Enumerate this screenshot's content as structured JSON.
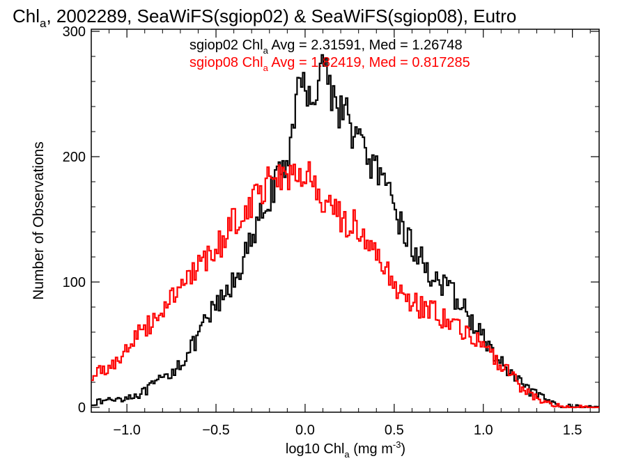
{
  "chart_data": {
    "type": "line",
    "step": true,
    "title": {
      "prefix": "Chl",
      "sub": "a",
      "suffix": ", 2002289, SeaWiFS(sgiop02) & SeaWiFS(sgiop08), Eutro"
    },
    "xlabel": {
      "prefix": "log10 Chl",
      "sub": "a",
      "suffix": " (mg m",
      "sup": "-3",
      "close": ")"
    },
    "ylabel": "Number of Observations",
    "xlim": [
      -1.2,
      1.65
    ],
    "ylim": [
      0,
      300
    ],
    "xticks": [
      -1.0,
      -0.5,
      0.0,
      0.5,
      1.0,
      1.5
    ],
    "xtick_labels": [
      "−1.0",
      "−0.5",
      "0.0",
      "0.5",
      "1.0",
      "1.5"
    ],
    "yticks": [
      0,
      100,
      200,
      300
    ],
    "ytick_labels": [
      "0",
      "100",
      "200",
      "300"
    ],
    "grid": false,
    "annotations": [
      {
        "prefix": "sgiop02 Chl",
        "sub": "a",
        "suffix": " Avg = 2.31591, Med = 1.26748",
        "color": "#000000"
      },
      {
        "prefix": "sgiop08 Chl",
        "sub": "a",
        "suffix": " Avg = 1.82419, Med = 0.817285",
        "color": "#ff0000"
      }
    ],
    "series": [
      {
        "color": "#000000",
        "points": [
          [
            -1.2,
            3
          ],
          [
            -1.1,
            6
          ],
          [
            -1.0,
            8
          ],
          [
            -0.95,
            10
          ],
          [
            -0.9,
            12
          ],
          [
            -0.85,
            18
          ],
          [
            -0.8,
            22
          ],
          [
            -0.75,
            28
          ],
          [
            -0.7,
            36
          ],
          [
            -0.65,
            44
          ],
          [
            -0.6,
            55
          ],
          [
            -0.55,
            70
          ],
          [
            -0.5,
            80
          ],
          [
            -0.45,
            88
          ],
          [
            -0.4,
            100
          ],
          [
            -0.35,
            118
          ],
          [
            -0.3,
            130
          ],
          [
            -0.25,
            150
          ],
          [
            -0.2,
            170
          ],
          [
            -0.15,
            180
          ],
          [
            -0.1,
            192
          ],
          [
            -0.07,
            232
          ],
          [
            -0.05,
            248
          ],
          [
            -0.02,
            255
          ],
          [
            0.0,
            252
          ],
          [
            0.03,
            258
          ],
          [
            0.05,
            246
          ],
          [
            0.08,
            262
          ],
          [
            0.1,
            285
          ],
          [
            0.12,
            268
          ],
          [
            0.15,
            250
          ],
          [
            0.2,
            238
          ],
          [
            0.25,
            228
          ],
          [
            0.3,
            212
          ],
          [
            0.35,
            200
          ],
          [
            0.4,
            190
          ],
          [
            0.45,
            170
          ],
          [
            0.5,
            162
          ],
          [
            0.55,
            142
          ],
          [
            0.6,
            128
          ],
          [
            0.65,
            118
          ],
          [
            0.7,
            108
          ],
          [
            0.75,
            100
          ],
          [
            0.8,
            92
          ],
          [
            0.85,
            88
          ],
          [
            0.9,
            76
          ],
          [
            0.95,
            66
          ],
          [
            1.0,
            55
          ],
          [
            1.05,
            44
          ],
          [
            1.1,
            36
          ],
          [
            1.15,
            26
          ],
          [
            1.2,
            20
          ],
          [
            1.25,
            14
          ],
          [
            1.3,
            10
          ],
          [
            1.35,
            6
          ],
          [
            1.4,
            3
          ],
          [
            1.45,
            1
          ],
          [
            1.5,
            1
          ],
          [
            1.55,
            0
          ]
        ]
      },
      {
        "color": "#ff0000",
        "points": [
          [
            -1.2,
            22
          ],
          [
            -1.15,
            30
          ],
          [
            -1.1,
            32
          ],
          [
            -1.05,
            38
          ],
          [
            -1.0,
            48
          ],
          [
            -0.95,
            55
          ],
          [
            -0.9,
            62
          ],
          [
            -0.85,
            70
          ],
          [
            -0.8,
            80
          ],
          [
            -0.75,
            90
          ],
          [
            -0.7,
            96
          ],
          [
            -0.65,
            102
          ],
          [
            -0.6,
            110
          ],
          [
            -0.55,
            116
          ],
          [
            -0.5,
            126
          ],
          [
            -0.45,
            136
          ],
          [
            -0.4,
            150
          ],
          [
            -0.35,
            156
          ],
          [
            -0.3,
            165
          ],
          [
            -0.25,
            172
          ],
          [
            -0.2,
            182
          ],
          [
            -0.15,
            188
          ],
          [
            -0.1,
            186
          ],
          [
            -0.05,
            184
          ],
          [
            0.0,
            186
          ],
          [
            0.05,
            176
          ],
          [
            0.1,
            164
          ],
          [
            0.15,
            154
          ],
          [
            0.2,
            150
          ],
          [
            0.25,
            148
          ],
          [
            0.3,
            142
          ],
          [
            0.35,
            132
          ],
          [
            0.4,
            118
          ],
          [
            0.45,
            108
          ],
          [
            0.5,
            100
          ],
          [
            0.55,
            90
          ],
          [
            0.6,
            84
          ],
          [
            0.65,
            80
          ],
          [
            0.7,
            78
          ],
          [
            0.75,
            74
          ],
          [
            0.8,
            68
          ],
          [
            0.85,
            64
          ],
          [
            0.9,
            60
          ],
          [
            0.95,
            54
          ],
          [
            1.0,
            48
          ],
          [
            1.05,
            40
          ],
          [
            1.1,
            34
          ],
          [
            1.15,
            26
          ],
          [
            1.2,
            18
          ],
          [
            1.25,
            12
          ],
          [
            1.3,
            8
          ],
          [
            1.35,
            4
          ],
          [
            1.4,
            2
          ],
          [
            1.45,
            1
          ],
          [
            1.5,
            0
          ]
        ]
      }
    ]
  }
}
